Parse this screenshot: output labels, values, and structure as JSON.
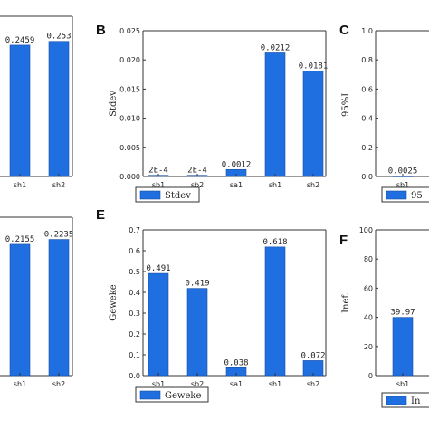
{
  "colors": {
    "bar": "#1f6fe0",
    "bar_stroke": "#1a4fa0",
    "axis": "#333333"
  },
  "chart_data": [
    {
      "panel": "",
      "type": "bar",
      "categories": [
        "sh1",
        "sh2"
      ],
      "values": [
        0.2459,
        0.253
      ],
      "value_labels": [
        "0.2459",
        "0.253"
      ],
      "ylabel": "",
      "ylim": [
        0,
        0.3
      ],
      "yticks": [],
      "legend": ""
    },
    {
      "panel": "B",
      "type": "bar",
      "categories": [
        "sb1",
        "sb2",
        "sa1",
        "sh1",
        "sh2"
      ],
      "values": [
        0.0002,
        0.0002,
        0.0012,
        0.0212,
        0.0181
      ],
      "value_labels": [
        "2E-4",
        "2E-4",
        "0.0012",
        "0.0212",
        "0.0181"
      ],
      "ylabel": "Stdev",
      "ylim": [
        0,
        0.025
      ],
      "yticks": [
        "0.000",
        "0.005",
        "0.010",
        "0.015",
        "0.020",
        "0.025"
      ],
      "legend": "Stdev"
    },
    {
      "panel": "C",
      "type": "bar",
      "categories": [
        "sb1"
      ],
      "values": [
        0.0025
      ],
      "value_labels": [
        "0.0025"
      ],
      "ylabel": "95%L",
      "ylim": [
        0,
        1.0
      ],
      "yticks": [
        "0.0",
        "0.2",
        "0.4",
        "0.6",
        "0.8",
        "1.0"
      ],
      "legend": "95"
    },
    {
      "panel": "",
      "type": "bar",
      "categories": [
        "sh1",
        "sh2"
      ],
      "values": [
        0.2155,
        0.2235
      ],
      "value_labels": [
        "0.2155",
        "0.2235"
      ],
      "ylabel": "",
      "ylim": [
        0,
        0.26
      ],
      "yticks": [],
      "legend": ""
    },
    {
      "panel": "E",
      "type": "bar",
      "categories": [
        "sb1",
        "sb2",
        "sa1",
        "sh1",
        "sh2"
      ],
      "values": [
        0.491,
        0.419,
        0.038,
        0.618,
        0.072
      ],
      "value_labels": [
        "0.491",
        "0.419",
        "0.038",
        "0.618",
        "0.072"
      ],
      "ylabel": "Geweke",
      "ylim": [
        0,
        0.7
      ],
      "yticks": [
        "0.0",
        "0.1",
        "0.2",
        "0.3",
        "0.4",
        "0.5",
        "0.6",
        "0.7"
      ],
      "legend": "Geweke"
    },
    {
      "panel": "F",
      "type": "bar",
      "categories": [
        "sb1"
      ],
      "values": [
        39.97
      ],
      "value_labels": [
        "39.97"
      ],
      "ylabel": "Inef.",
      "ylim": [
        0,
        100
      ],
      "yticks": [
        "0",
        "20",
        "40",
        "60",
        "80",
        "100"
      ],
      "legend": "In"
    }
  ]
}
